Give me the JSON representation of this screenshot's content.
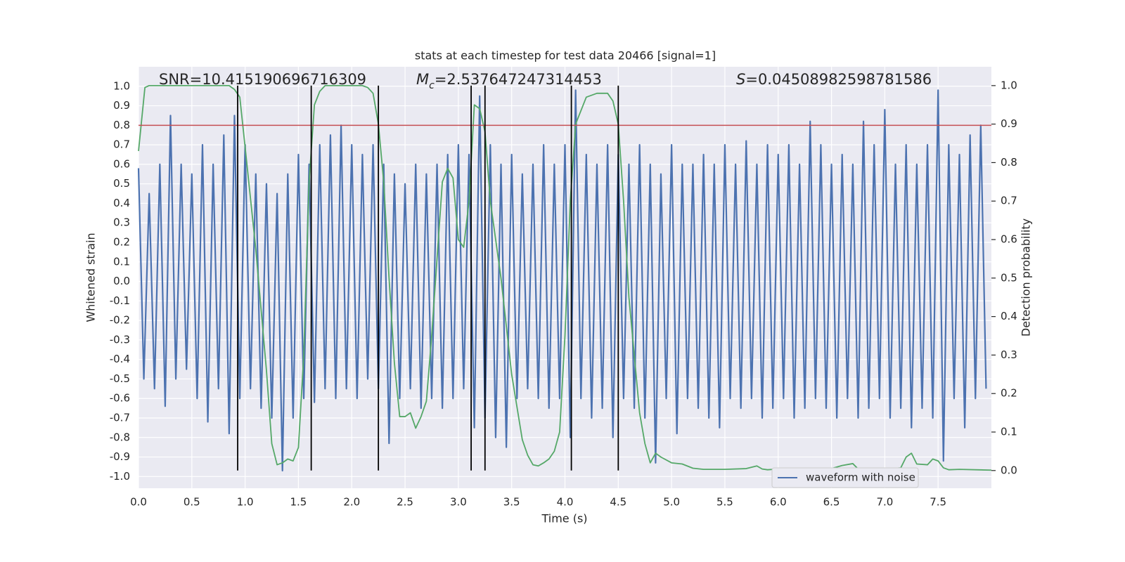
{
  "chart_data": {
    "type": "line",
    "title": "stats at each timestep for test data 20466 [signal=1]",
    "xlabel": "Time (s)",
    "ylabel": "Whitened strain",
    "y2label": "Detection probability",
    "annotations": [
      {
        "text": "SNR=10.415190696716309"
      },
      {
        "symbol": "M",
        "sub": "c",
        "text": "=2.537647247314453"
      },
      {
        "symbol": "S",
        "text": "=0.04508982598781586"
      }
    ],
    "xlim": [
      0,
      8.0
    ],
    "xticks": [
      {
        "value": 0,
        "label": "0.0"
      },
      0.5,
      {
        "value": 1,
        "label": "1.0"
      },
      1.5,
      {
        "value": 2,
        "label": "2.0"
      },
      2.5,
      {
        "value": 3,
        "label": "3.0"
      },
      3.5,
      {
        "value": 4,
        "label": "4.0"
      },
      4.5,
      {
        "value": 5,
        "label": "5.0"
      },
      5.5,
      {
        "value": 6,
        "label": "6.0"
      },
      6.5,
      {
        "value": 7,
        "label": "7.0"
      },
      7.5
    ],
    "ylim": [
      -1.06,
      1.1
    ],
    "yticks": [
      {
        "value": -1,
        "label": "-1.0"
      },
      -0.9,
      -0.8,
      -0.7,
      -0.6,
      -0.5,
      -0.4,
      -0.3,
      -0.2,
      -0.1,
      {
        "value": 0,
        "label": "0.0"
      },
      0.1,
      0.2,
      0.3,
      0.4,
      0.5,
      0.6,
      0.7,
      0.8,
      0.9,
      {
        "value": 1,
        "label": "1.0"
      }
    ],
    "y2lim": [
      -0.046,
      1.049
    ],
    "y2ticks": [
      {
        "value": 0,
        "label": "0.0"
      },
      0.1,
      0.2,
      0.3,
      0.4,
      0.5,
      0.6,
      0.7,
      0.8,
      0.9,
      {
        "value": 1,
        "label": "1.0"
      }
    ],
    "grid": true,
    "legend": "lower right",
    "hline": {
      "value": 0.8,
      "color": "#c44e52"
    },
    "vlines": {
      "x": [
        0.93,
        1.62,
        2.25,
        3.12,
        3.25,
        4.06,
        4.5
      ],
      "span": [
        0,
        1
      ],
      "color": "#000000"
    },
    "series": [
      {
        "name": "waveform with noise",
        "color": "#4c72b0",
        "x": [
          0,
          0.05,
          0.1,
          0.15,
          0.2,
          0.25,
          0.3,
          0.35,
          0.4,
          0.45,
          0.5,
          0.55,
          0.6,
          0.65,
          0.7,
          0.75,
          0.8,
          0.85,
          0.9,
          0.95,
          1,
          1.05,
          1.1,
          1.15,
          1.2,
          1.25,
          1.3,
          1.35,
          1.4,
          1.45,
          1.5,
          1.55,
          1.6,
          1.65,
          1.7,
          1.75,
          1.8,
          1.85,
          1.9,
          1.95,
          2,
          2.05,
          2.1,
          2.15,
          2.2,
          2.25,
          2.3,
          2.35,
          2.4,
          2.45,
          2.5,
          2.55,
          2.6,
          2.65,
          2.7,
          2.75,
          2.8,
          2.85,
          2.9,
          2.95,
          3,
          3.05,
          3.1,
          3.15,
          3.2,
          3.25,
          3.3,
          3.35,
          3.4,
          3.45,
          3.5,
          3.55,
          3.6,
          3.65,
          3.7,
          3.75,
          3.8,
          3.85,
          3.9,
          3.95,
          4,
          4.05,
          4.1,
          4.15,
          4.2,
          4.25,
          4.3,
          4.35,
          4.4,
          4.45,
          4.5,
          4.55,
          4.6,
          4.65,
          4.7,
          4.75,
          4.8,
          4.85,
          4.9,
          4.95,
          5,
          5.05,
          5.1,
          5.15,
          5.2,
          5.25,
          5.3,
          5.35,
          5.4,
          5.45,
          5.5,
          5.55,
          5.6,
          5.65,
          5.7,
          5.75,
          5.8,
          5.85,
          5.9,
          5.95,
          6,
          6.05,
          6.1,
          6.15,
          6.2,
          6.25,
          6.3,
          6.35,
          6.4,
          6.45,
          6.5,
          6.55,
          6.6,
          6.65,
          6.7,
          6.75,
          6.8,
          6.85,
          6.9,
          6.95,
          7,
          7.05,
          7.1,
          7.15,
          7.2,
          7.25,
          7.3,
          7.35,
          7.4,
          7.45,
          7.5,
          7.55,
          7.6,
          7.65,
          7.7,
          7.75,
          7.8,
          7.85,
          7.9,
          7.95
        ],
        "values": [
          0.58,
          -0.5,
          0.45,
          -0.55,
          0.6,
          -0.64,
          0.85,
          -0.5,
          0.6,
          -0.45,
          0.55,
          -0.6,
          0.7,
          -0.72,
          0.6,
          -0.55,
          0.75,
          -0.78,
          0.85,
          -0.6,
          0.7,
          -0.55,
          0.55,
          -0.65,
          0.5,
          -0.7,
          0.45,
          -0.97,
          0.55,
          -0.7,
          0.65,
          -0.6,
          0.6,
          -0.62,
          0.7,
          -0.55,
          0.75,
          -0.6,
          0.8,
          -0.55,
          0.7,
          -0.6,
          0.65,
          -0.5,
          0.7,
          -0.55,
          0.6,
          -0.83,
          0.55,
          -0.6,
          0.5,
          -0.55,
          0.6,
          -0.65,
          0.55,
          -0.6,
          0.6,
          -0.65,
          0.65,
          -0.6,
          0.7,
          -0.55,
          0.65,
          -0.75,
          0.95,
          -0.7,
          0.7,
          -0.8,
          0.6,
          -0.85,
          0.65,
          -0.6,
          0.55,
          -0.55,
          0.6,
          -0.6,
          0.7,
          -0.65,
          0.6,
          -0.6,
          0.7,
          -0.8,
          0.98,
          -0.6,
          0.65,
          -0.7,
          0.6,
          -0.65,
          0.7,
          -0.8,
          0.65,
          -0.6,
          0.6,
          -0.65,
          0.7,
          -0.7,
          0.6,
          -0.93,
          0.55,
          -0.6,
          0.7,
          -0.78,
          0.6,
          -0.6,
          0.6,
          -0.65,
          0.65,
          -0.7,
          0.6,
          -0.75,
          0.7,
          -0.6,
          0.6,
          -0.65,
          0.72,
          -0.6,
          0.6,
          -0.7,
          0.7,
          -0.65,
          0.65,
          -0.6,
          0.7,
          -0.7,
          0.6,
          -0.65,
          0.82,
          -0.6,
          0.7,
          -0.65,
          0.6,
          -0.7,
          0.65,
          -0.6,
          0.6,
          -0.7,
          0.82,
          -0.65,
          0.7,
          -0.6,
          0.88,
          -0.7,
          0.6,
          -0.65,
          0.7,
          -0.75,
          0.6,
          -0.65,
          0.7,
          -0.7,
          0.98,
          -0.92,
          0.7,
          -0.6,
          0.65,
          -0.75,
          0.75,
          -0.6,
          0.8,
          -0.55
        ]
      },
      {
        "color": "#55a868",
        "axis": "y2",
        "x": [
          0,
          0.06,
          0.1,
          0.2,
          0.3,
          0.4,
          0.5,
          0.6,
          0.7,
          0.8,
          0.85,
          0.9,
          0.95,
          1,
          1.1,
          1.2,
          1.25,
          1.3,
          1.35,
          1.4,
          1.45,
          1.5,
          1.55,
          1.6,
          1.65,
          1.7,
          1.75,
          1.8,
          1.9,
          2,
          2.1,
          2.15,
          2.2,
          2.25,
          2.3,
          2.35,
          2.4,
          2.45,
          2.5,
          2.55,
          2.6,
          2.65,
          2.7,
          2.75,
          2.8,
          2.85,
          2.9,
          2.95,
          3,
          3.05,
          3.1,
          3.15,
          3.2,
          3.25,
          3.3,
          3.4,
          3.5,
          3.6,
          3.65,
          3.7,
          3.75,
          3.8,
          3.85,
          3.9,
          3.95,
          4,
          4.05,
          4.1,
          4.2,
          4.3,
          4.4,
          4.45,
          4.5,
          4.55,
          4.6,
          4.7,
          4.75,
          4.8,
          4.85,
          4.9,
          5,
          5.1,
          5.2,
          5.3,
          5.5,
          5.7,
          5.8,
          5.85,
          5.9,
          6,
          6.2,
          6.4,
          6.5,
          6.6,
          6.7,
          6.75,
          6.85,
          7,
          7.15,
          7.2,
          7.25,
          7.3,
          7.4,
          7.45,
          7.5,
          7.55,
          7.6,
          7.7,
          8
        ],
        "values": [
          0.83,
          0.995,
          1,
          1,
          1,
          1,
          1,
          1,
          1,
          1,
          1,
          0.99,
          0.97,
          0.84,
          0.575,
          0.26,
          0.07,
          0.015,
          0.02,
          0.03,
          0.025,
          0.06,
          0.3,
          0.75,
          0.95,
          0.985,
          1,
          1,
          1,
          1,
          1,
          0.995,
          0.98,
          0.9,
          0.75,
          0.5,
          0.28,
          0.14,
          0.14,
          0.15,
          0.11,
          0.14,
          0.18,
          0.35,
          0.55,
          0.75,
          0.785,
          0.76,
          0.6,
          0.58,
          0.7,
          0.95,
          0.94,
          0.88,
          0.7,
          0.5,
          0.25,
          0.08,
          0.04,
          0.015,
          0.012,
          0.02,
          0.03,
          0.05,
          0.1,
          0.35,
          0.7,
          0.9,
          0.97,
          0.98,
          0.98,
          0.96,
          0.9,
          0.7,
          0.45,
          0.15,
          0.07,
          0.02,
          0.045,
          0.035,
          0.02,
          0.017,
          0.006,
          0.003,
          0.003,
          0.005,
          0.012,
          0.004,
          0.002,
          0.004,
          0.002,
          0.004,
          0.005,
          0.013,
          0.018,
          0.004,
          0.003,
          0.003,
          0.007,
          0.035,
          0.045,
          0.017,
          0.015,
          0.03,
          0.025,
          0.007,
          0.002,
          0.003,
          0.001
        ]
      }
    ]
  }
}
